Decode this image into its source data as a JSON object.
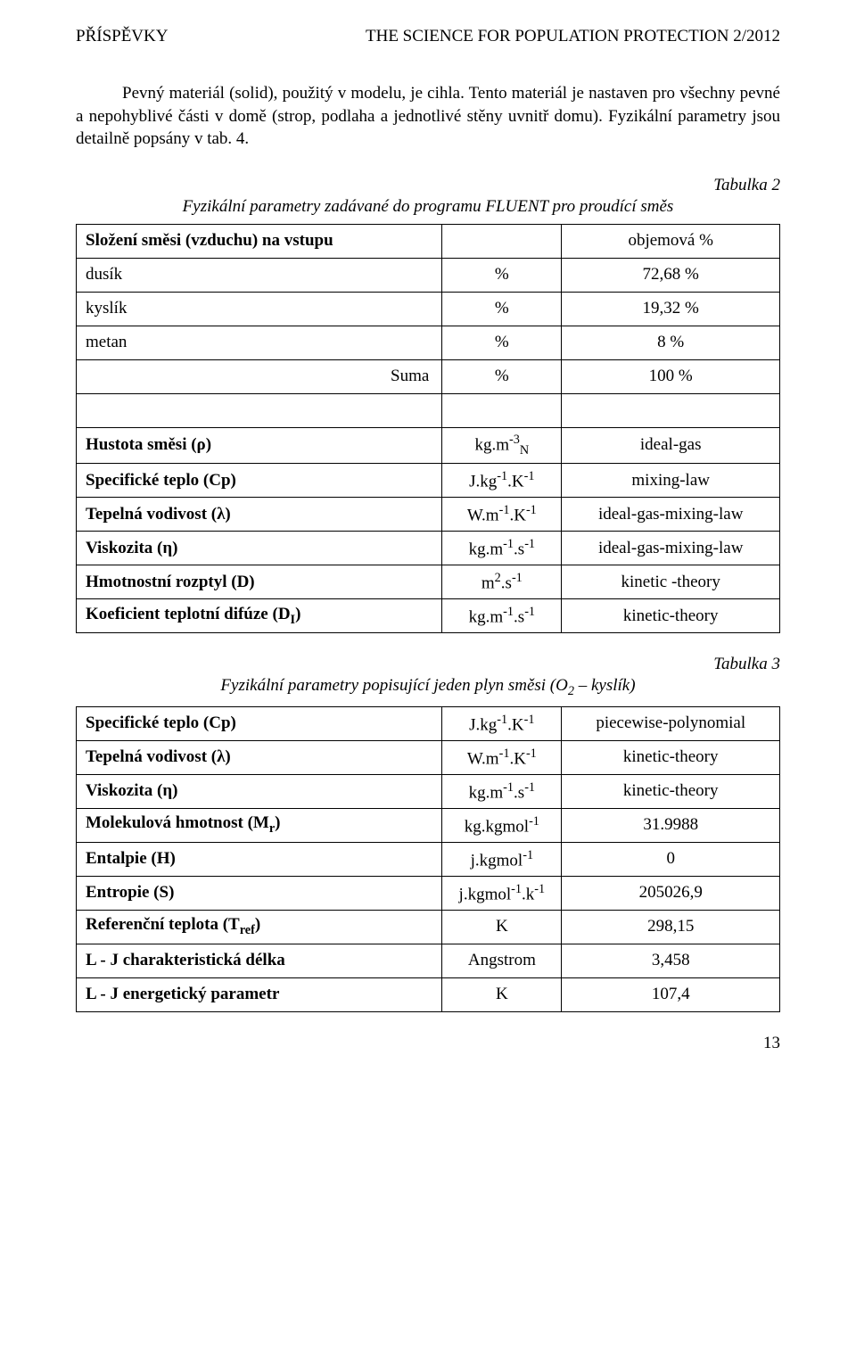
{
  "header": {
    "left": "PŘÍSPĚVKY",
    "right": "THE SCIENCE FOR POPULATION PROTECTION 2/2012"
  },
  "para1": "Pevný materiál (solid), použitý v modelu, je cihla. Tento materiál je nastaven pro všechny pevné a nepohyblivé části v domě (strop, podlaha a jednotlivé stěny uvnitř domu). Fyzikální parametry jsou detailně popsány v tab. 4.",
  "table2": {
    "title": "Tabulka 2",
    "caption": "Fyzikální parametry zadávané do programu FLUENT pro proudící směs",
    "header_row": {
      "c1": "Složení směsi (vzduchu) na vstupu",
      "c2": "",
      "c3": "objemová %"
    },
    "rows_top": [
      {
        "c1": "dusík",
        "c2": "%",
        "c3": "72,68 %"
      },
      {
        "c1": "kyslík",
        "c2": "%",
        "c3": "19,32 %"
      },
      {
        "c1": "metan",
        "c2": "%",
        "c3": "8 %"
      },
      {
        "c1": "Suma",
        "c2": "%",
        "c3": "100 %"
      }
    ],
    "blank": {
      "c1": "",
      "c2": "",
      "c3": ""
    },
    "rows_bottom": [
      {
        "c1": "Hustota směsi (ρ)",
        "c2_html": "kg.m<sup>-3</sup><sub>N</sub>",
        "c3": "ideal-gas"
      },
      {
        "c1": "Specifické teplo (Cp)",
        "c2_html": "J.kg<sup>-1</sup>.K<sup>-1</sup>",
        "c3": "mixing-law"
      },
      {
        "c1": "Tepelná vodivost (λ)",
        "c2_html": "W.m<sup>-1</sup>.K<sup>-1</sup>",
        "c3": "ideal-gas-mixing-law"
      },
      {
        "c1": "Viskozita (η)",
        "c2_html": "kg.m<sup>-1</sup>.s<sup>-1</sup>",
        "c3": "ideal-gas-mixing-law"
      },
      {
        "c1": "Hmotnostní rozptyl (D)",
        "c2_html": "m<sup>2</sup>.s<sup>-1</sup>",
        "c3": "kinetic -theory"
      },
      {
        "c1_html": "Koeficient teplotní difúze (D<sub>I</sub>)",
        "c2_html": "kg.m<sup>-1</sup>.s<sup>-1</sup>",
        "c3": "kinetic-theory"
      }
    ]
  },
  "table3": {
    "title": "Tabulka 3",
    "caption_html": "Fyzikální parametry popisující jeden plyn směsi (O<sub>2</sub> – kyslík)",
    "rows": [
      {
        "c1": "Specifické teplo (Cp)",
        "c2_html": "J.kg<sup>-1</sup>.K<sup>-1</sup>",
        "c3": "piecewise-polynomial"
      },
      {
        "c1": "Tepelná vodivost (λ)",
        "c2_html": "W.m<sup>-1</sup>.K<sup>-1</sup>",
        "c3": "kinetic-theory"
      },
      {
        "c1": "Viskozita (η)",
        "c2_html": "kg.m<sup>-1</sup>.s<sup>-1</sup>",
        "c3": "kinetic-theory"
      },
      {
        "c1_html": "Molekulová hmotnost (M<sub>r</sub>)",
        "c2_html": "kg.kgmol<sup>-1</sup>",
        "c3": "31.9988"
      },
      {
        "c1": "Entalpie (H)",
        "c2_html": "j.kgmol<sup>-1</sup>",
        "c3": "0"
      },
      {
        "c1": "Entropie (S)",
        "c2_html": "j.kgmol<sup>-1</sup>.k<sup>-1</sup>",
        "c3": "205026,9"
      },
      {
        "c1_html": "Referenční teplota (T<sub>ref</sub>)",
        "c2_html": "K",
        "c3": "298,15"
      },
      {
        "c1": "L - J charakteristická délka",
        "c2_html": "Angstrom",
        "c3": "3,458"
      },
      {
        "c1": "L - J energetický parametr",
        "c2_html": "K",
        "c3": "107,4"
      }
    ]
  },
  "pagenum": "13"
}
